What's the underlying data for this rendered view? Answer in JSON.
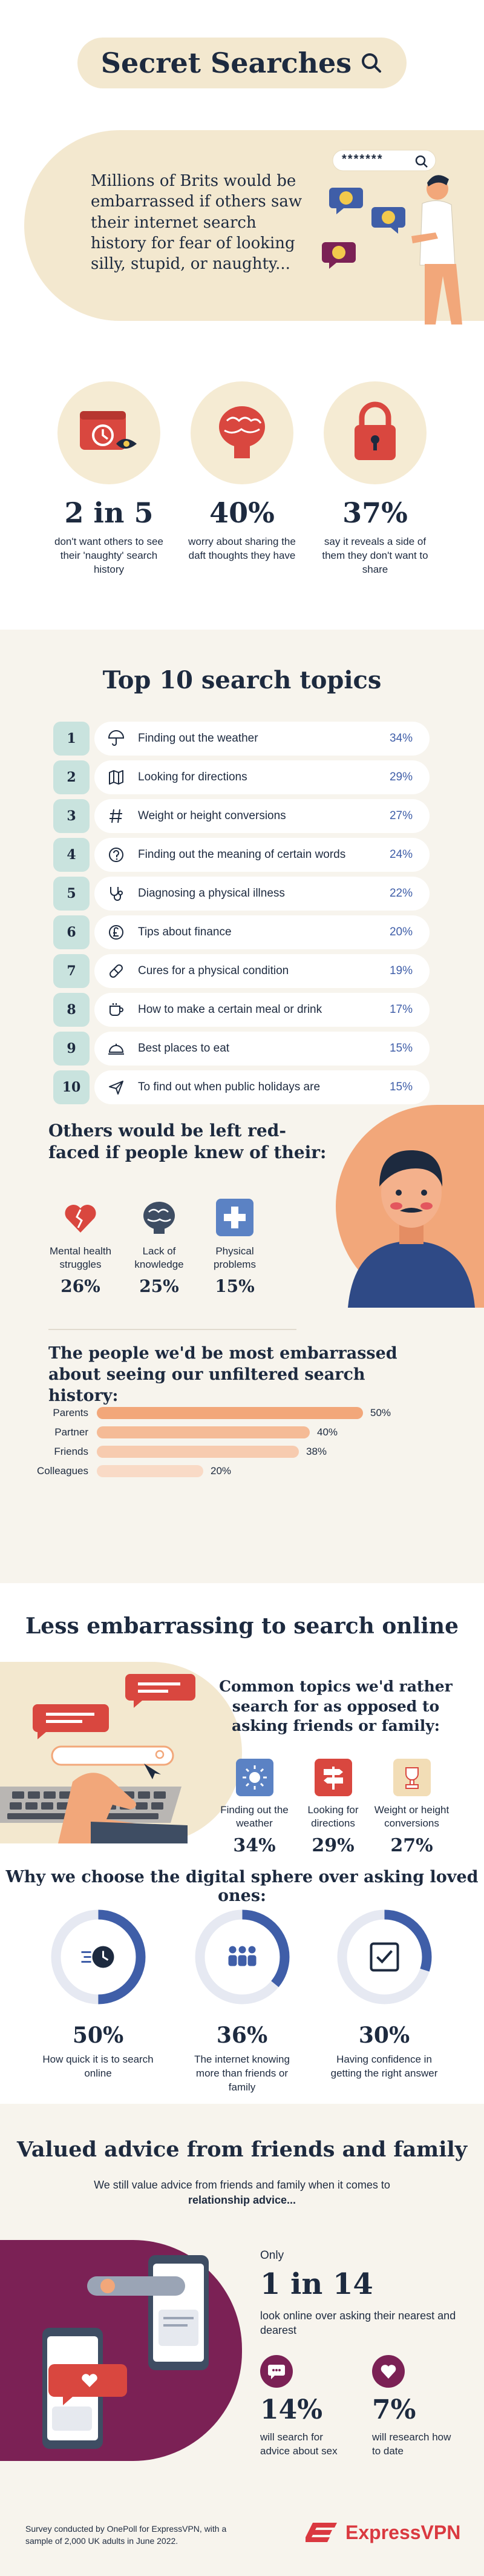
{
  "title": "Secret Searches",
  "intro": {
    "text": "Millions of Brits would be embarrassed if others saw their internet search history for fear of looking silly, stupid, or naughty...",
    "search_box": "*******"
  },
  "stats": [
    {
      "value": "2 in 5",
      "text": "don't want others to see their 'naughty' search history",
      "icon": "calendar-clock-icon"
    },
    {
      "value": "40%",
      "text": "worry about sharing the daft thoughts they have",
      "icon": "brain-icon"
    },
    {
      "value": "37%",
      "text": "say it reveals a side of them they don't want to share",
      "icon": "padlock-icon"
    }
  ],
  "top10": {
    "title": "Top 10 search topics",
    "items": [
      {
        "rank": "1",
        "label": "Finding out the weather",
        "pct": "34%",
        "icon": "umbrella-icon"
      },
      {
        "rank": "2",
        "label": "Looking for directions",
        "pct": "29%",
        "icon": "map-icon"
      },
      {
        "rank": "3",
        "label": "Weight or height conversions",
        "pct": "27%",
        "icon": "hash-icon"
      },
      {
        "rank": "4",
        "label": "Finding out the meaning of certain words",
        "pct": "24%",
        "icon": "question-icon"
      },
      {
        "rank": "5",
        "label": "Diagnosing a physical illness",
        "pct": "22%",
        "icon": "stethoscope-icon"
      },
      {
        "rank": "6",
        "label": "Tips about finance",
        "pct": "20%",
        "icon": "pound-icon"
      },
      {
        "rank": "7",
        "label": "Cures for a physical condition",
        "pct": "19%",
        "icon": "pill-icon"
      },
      {
        "rank": "8",
        "label": "How to make a certain meal or drink",
        "pct": "17%",
        "icon": "mug-icon"
      },
      {
        "rank": "9",
        "label": "Best places to eat",
        "pct": "15%",
        "icon": "cloche-icon"
      },
      {
        "rank": "10",
        "label": "To find out when public holidays are",
        "pct": "15%",
        "icon": "send-icon"
      }
    ]
  },
  "red_faced": {
    "title": "Others would be left red-faced if people knew of their:",
    "items": [
      {
        "label": "Mental health struggles",
        "pct": "26%",
        "icon": "broken-heart-icon",
        "color": "#d9473f"
      },
      {
        "label": "Lack of knowledge",
        "pct": "25%",
        "icon": "brain-icon",
        "color": "#3e4d63"
      },
      {
        "label": "Physical problems",
        "pct": "15%",
        "icon": "medical-cross-icon",
        "color": "#5b82c4"
      }
    ]
  },
  "embarrassed": {
    "title": "The people we'd be most embarrassed about seeing our unfiltered search history:",
    "bars": [
      {
        "name": "Parents",
        "label": "50%",
        "value": 50,
        "color": "#f2a77a"
      },
      {
        "name": "Partner",
        "label": "40%",
        "value": 40,
        "color": "#f5bb96"
      },
      {
        "name": "Friends",
        "label": "38%",
        "value": 38,
        "color": "#f7cbaf"
      },
      {
        "name": "Colleagues",
        "label": "20%",
        "value": 20,
        "color": "#f9dac6"
      }
    ]
  },
  "less": {
    "title": "Less embarrassing to search online",
    "common_title": "Common topics we'd rather search for as opposed to asking friends or family:",
    "common": [
      {
        "label": "Finding out the weather",
        "pct": "34%",
        "icon": "sun-icon",
        "color": "#5b82c4"
      },
      {
        "label": "Looking for directions",
        "pct": "29%",
        "icon": "signpost-icon",
        "color": "#d9473f"
      },
      {
        "label": "Weight or height conversions",
        "pct": "27%",
        "icon": "trophy-icon",
        "color": "#f2ddb6"
      }
    ],
    "why_title": "Why we choose the digital sphere over asking loved ones:",
    "donuts": [
      {
        "pct": "50%",
        "value": 50,
        "label": "How quick it is to search online",
        "icon": "fast-clock-icon"
      },
      {
        "pct": "36%",
        "value": 36,
        "label": "The internet knowing more than friends or family",
        "icon": "people-icon"
      },
      {
        "pct": "30%",
        "value": 30,
        "label": "Having confidence in getting the right answer",
        "icon": "checkbox-icon"
      }
    ]
  },
  "advice": {
    "title": "Valued advice from friends and family",
    "sub_start": "We still value advice from friends and family when it comes to ",
    "sub_bold": "relationship advice...",
    "only": "Only",
    "big": "1 in 14",
    "big_text": "look online over asking their nearest and dearest",
    "items": [
      {
        "pct": "14%",
        "label": "will search for advice about sex",
        "icon": "chat-icon"
      },
      {
        "pct": "7%",
        "label": "will research how to date",
        "icon": "heart-icon"
      }
    ],
    "footnote": "Survey conducted by OnePoll for ExpressVPN, with a sample of 2,000 UK adults in June 2022.",
    "logo": "ExpressVPN"
  },
  "colors": {
    "navy": "#1d2a3f",
    "cream": "#f3e8cf",
    "blue": "#3f5ea8",
    "teal": "#c9e3de",
    "peach": "#f2a77a",
    "plum": "#7b2155",
    "red": "#d9473f"
  }
}
